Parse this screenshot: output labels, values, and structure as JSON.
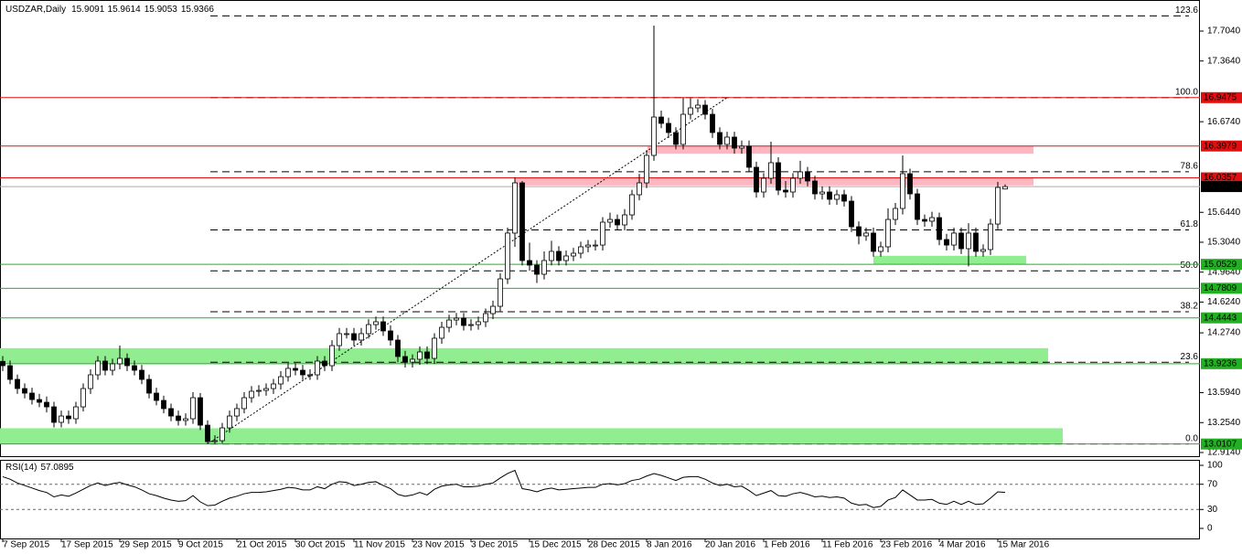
{
  "chart_data": {
    "type": "candlestick",
    "title": "USDZAR,Daily",
    "categories": [
      "7 Sep 2015",
      null,
      null,
      null,
      null,
      null,
      null,
      null,
      "17 Sep 2015",
      null,
      null,
      null,
      null,
      null,
      null,
      null,
      "29 Sep 2015",
      null,
      null,
      null,
      null,
      null,
      null,
      null,
      "9 Oct 2015",
      null,
      null,
      null,
      null,
      null,
      null,
      null,
      "21 Oct 2015",
      null,
      null,
      null,
      null,
      null,
      null,
      null,
      "30 Oct 2015",
      null,
      null,
      null,
      null,
      null,
      null,
      null,
      "11 Nov 2015",
      null,
      null,
      null,
      null,
      null,
      null,
      null,
      "23 Nov 2015",
      null,
      null,
      null,
      null,
      null,
      null,
      null,
      "3 Dec 2015",
      null,
      null,
      null,
      null,
      null,
      null,
      null,
      "15 Dec 2015",
      null,
      null,
      null,
      null,
      null,
      null,
      null,
      "28 Dec 2015",
      null,
      null,
      null,
      null,
      null,
      null,
      null,
      "8 Jan 2016",
      null,
      null,
      null,
      null,
      null,
      null,
      null,
      "20 Jan 2016",
      null,
      null,
      null,
      null,
      null,
      null,
      null,
      "1 Feb 2016",
      null,
      null,
      null,
      null,
      null,
      null,
      null,
      "11 Feb 2016",
      null,
      null,
      null,
      null,
      null,
      null,
      null,
      "23 Feb 2016",
      null,
      null,
      null,
      null,
      null,
      null,
      null,
      "4 Mar 2016",
      null,
      null,
      null,
      null,
      null,
      null,
      null,
      "15 Mar 2016",
      null
    ],
    "open": [
      13.95,
      13.901,
      13.745,
      13.641,
      13.589,
      13.516,
      13.485,
      13.433,
      13.257,
      13.329,
      13.298,
      13.433,
      13.641,
      13.797,
      13.953,
      13.849,
      13.922,
      13.984,
      13.901,
      13.849,
      13.745,
      13.589,
      13.506,
      13.413,
      13.329,
      13.278,
      13.298,
      13.537,
      13.225,
      13.038,
      13.049,
      13.194,
      13.329,
      13.413,
      13.537,
      13.61,
      13.62,
      13.641,
      13.693,
      13.776,
      13.87,
      13.849,
      13.797,
      13.797,
      13.953,
      13.901,
      14.129,
      14.265,
      14.265,
      14.192,
      14.265,
      14.368,
      14.4,
      14.296,
      14.192,
      14.005,
      13.942,
      13.974,
      14.057,
      13.984,
      14.213,
      14.337,
      14.42,
      14.441,
      14.358,
      14.368,
      14.4,
      14.493,
      14.576,
      14.888,
      15.408,
      15.979,
      15.096,
      15.044,
      14.94,
      15.096,
      15.2,
      15.096,
      15.148,
      15.179,
      15.252,
      15.272,
      15.272,
      15.532,
      15.563,
      15.501,
      15.615,
      15.844,
      15.979,
      16.291,
      16.727,
      16.655,
      16.551,
      16.416,
      16.758,
      16.831,
      16.862,
      16.758,
      16.551,
      16.416,
      16.499,
      16.374,
      16.395,
      16.156,
      15.875,
      16.031,
      16.208,
      15.896,
      15.875,
      16.031,
      16.104,
      16.0,
      15.854,
      15.875,
      15.792,
      15.844,
      15.771,
      15.48,
      15.376,
      15.408,
      15.2,
      15.252,
      15.563,
      15.688,
      16.083,
      15.854,
      15.563,
      15.543,
      15.584,
      15.335,
      15.272,
      15.408,
      15.231,
      15.408,
      15.2,
      15.221,
      15.511,
      15.9091
    ],
    "high": [
      14.01,
      13.96,
      13.8,
      13.7,
      13.65,
      13.58,
      13.55,
      13.49,
      13.39,
      13.39,
      13.49,
      13.7,
      13.86,
      14.01,
      14.01,
      13.98,
      14.13,
      14.04,
      13.96,
      13.91,
      13.8,
      13.65,
      13.56,
      13.47,
      13.39,
      13.36,
      13.6,
      13.59,
      13.28,
      13.11,
      13.25,
      13.39,
      13.47,
      13.6,
      13.67,
      13.68,
      13.7,
      13.75,
      13.84,
      13.93,
      13.93,
      13.91,
      13.86,
      14.01,
      14.01,
      14.19,
      14.33,
      14.33,
      14.33,
      14.33,
      14.43,
      14.46,
      14.46,
      14.36,
      14.25,
      14.07,
      14.03,
      14.12,
      14.12,
      14.27,
      14.4,
      14.48,
      14.5,
      14.5,
      14.43,
      14.46,
      14.55,
      14.64,
      14.95,
      15.47,
      16.04,
      16.0,
      15.3,
      15.1,
      15.2,
      15.32,
      15.26,
      15.21,
      15.24,
      15.31,
      15.33,
      15.33,
      15.59,
      15.64,
      15.62,
      15.68,
      15.9,
      16.08,
      16.35,
      17.766,
      16.8,
      16.72,
      16.61,
      16.9475,
      16.94,
      16.93,
      16.92,
      16.82,
      16.61,
      16.56,
      16.56,
      16.46,
      16.46,
      16.22,
      16.09,
      16.447,
      16.27,
      16.0,
      16.09,
      16.23,
      16.16,
      16.06,
      15.94,
      15.94,
      15.9,
      15.9,
      15.83,
      15.54,
      15.47,
      15.47,
      15.31,
      15.69,
      15.75,
      16.29,
      16.14,
      15.91,
      15.62,
      15.65,
      15.64,
      15.4,
      15.47,
      15.47,
      15.52,
      15.47,
      15.28,
      15.57,
      15.99,
      15.9614
    ],
    "low": [
      13.84,
      13.69,
      13.58,
      13.53,
      13.46,
      13.43,
      13.37,
      13.2,
      13.2,
      13.24,
      13.24,
      13.38,
      13.58,
      13.74,
      13.79,
      13.79,
      13.86,
      13.84,
      13.79,
      13.69,
      13.53,
      13.45,
      13.36,
      13.27,
      13.22,
      13.22,
      13.24,
      13.17,
      13.0107,
      13.01,
      13.02,
      13.14,
      13.27,
      13.36,
      13.48,
      13.55,
      13.56,
      13.58,
      13.63,
      13.72,
      13.79,
      13.74,
      13.74,
      13.74,
      13.84,
      13.84,
      14.07,
      14.21,
      14.13,
      14.13,
      14.21,
      14.31,
      14.24,
      14.13,
      13.94,
      13.88,
      13.88,
      13.91,
      13.92,
      13.92,
      14.15,
      14.28,
      14.36,
      14.3,
      14.3,
      14.31,
      14.34,
      14.43,
      14.52,
      14.83,
      15.25,
      15.04,
      14.98,
      14.84,
      14.88,
      15.04,
      15.04,
      15.04,
      15.09,
      15.12,
      15.19,
      15.21,
      15.21,
      15.47,
      15.44,
      15.44,
      15.56,
      15.78,
      15.92,
      16.23,
      16.6,
      16.49,
      16.36,
      16.36,
      16.7,
      16.78,
      16.7,
      16.49,
      16.36,
      16.36,
      16.31,
      16.31,
      16.1,
      15.81,
      15.81,
      15.97,
      15.84,
      15.81,
      15.81,
      15.97,
      15.94,
      15.79,
      15.79,
      15.73,
      15.73,
      15.71,
      15.42,
      15.28,
      15.32,
      15.14,
      15.14,
      15.19,
      15.5,
      15.62,
      15.79,
      15.5,
      15.48,
      15.48,
      15.27,
      15.21,
      15.21,
      15.17,
      15.03,
      15.14,
      15.14,
      15.16,
      15.45,
      15.9053
    ],
    "close": [
      13.901,
      13.745,
      13.641,
      13.589,
      13.516,
      13.485,
      13.433,
      13.257,
      13.329,
      13.298,
      13.433,
      13.641,
      13.797,
      13.953,
      13.849,
      13.922,
      13.984,
      13.901,
      13.849,
      13.745,
      13.589,
      13.506,
      13.413,
      13.329,
      13.278,
      13.298,
      13.537,
      13.225,
      13.038,
      13.049,
      13.194,
      13.329,
      13.413,
      13.537,
      13.61,
      13.62,
      13.641,
      13.693,
      13.776,
      13.87,
      13.849,
      13.797,
      13.797,
      13.953,
      13.901,
      14.129,
      14.265,
      14.265,
      14.192,
      14.265,
      14.368,
      14.4,
      14.296,
      14.192,
      14.005,
      13.942,
      13.974,
      14.057,
      13.984,
      14.213,
      14.337,
      14.42,
      14.441,
      14.358,
      14.368,
      14.4,
      14.493,
      14.576,
      14.888,
      15.408,
      15.979,
      15.096,
      15.044,
      14.94,
      15.096,
      15.2,
      15.096,
      15.148,
      15.179,
      15.252,
      15.272,
      15.272,
      15.532,
      15.563,
      15.501,
      15.615,
      15.844,
      15.979,
      16.291,
      16.727,
      16.655,
      16.551,
      16.416,
      16.758,
      16.831,
      16.862,
      16.758,
      16.551,
      16.416,
      16.499,
      16.374,
      16.395,
      16.156,
      15.875,
      16.031,
      16.208,
      15.896,
      15.875,
      16.031,
      16.104,
      16.0,
      15.854,
      15.875,
      15.792,
      15.844,
      15.771,
      15.48,
      15.376,
      15.408,
      15.2,
      15.252,
      15.563,
      15.688,
      16.083,
      15.854,
      15.563,
      15.543,
      15.584,
      15.335,
      15.272,
      15.408,
      15.231,
      15.408,
      15.2,
      15.221,
      15.511,
      15.927,
      15.9366
    ],
    "bull_color": "#ffffff",
    "bear_color": "#000000",
    "ylim": [
      12.8619,
      18.0573
    ],
    "yticks": [
      {
        "value": 17.704,
        "label": "17.7040"
      },
      {
        "value": 17.364,
        "label": "17.3640"
      },
      {
        "value": 16.674,
        "label": "16.6740"
      },
      {
        "value": 15.644,
        "label": "15.6440"
      },
      {
        "value": 15.304,
        "label": "15.3040"
      },
      {
        "value": 14.964,
        "label": "14.9640"
      },
      {
        "value": 14.624,
        "label": "14.6240"
      },
      {
        "value": 14.274,
        "label": "14.2740"
      },
      {
        "value": 13.594,
        "label": "13.5940"
      },
      {
        "value": 13.254,
        "label": "13.2540"
      },
      {
        "value": 12.914,
        "label": "12.9140"
      }
    ],
    "grid": false,
    "price_lines": [
      {
        "value": 16.9475,
        "color": "#e01010",
        "text_color": "#ffffff"
      },
      {
        "value": 16.3979,
        "color": "#e01010",
        "text_color": "#ffffff"
      },
      {
        "value": 16.0357,
        "color": "#e01010",
        "text_color": "#ffffff"
      },
      {
        "value": 15.0529,
        "color": "#22b022",
        "text_color": "#000000"
      },
      {
        "value": 14.7809,
        "color": "#22b022",
        "text_color": "#000000"
      },
      {
        "value": 14.4443,
        "color": "#22b022",
        "text_color": "#000000"
      },
      {
        "value": 13.9236,
        "color": "#22b022",
        "text_color": "#000000"
      },
      {
        "value": 13.0107,
        "color": "#22b022",
        "text_color": "#000000"
      }
    ],
    "zones": [
      {
        "from": 16.3979,
        "to": 16.31,
        "color": "#ffb6c1"
      },
      {
        "from": 16.0357,
        "to": 15.95,
        "color": "#ffb6c1"
      },
      {
        "from": 15.0529,
        "to": 15.15,
        "color": "#90ee90"
      },
      {
        "from": 13.9236,
        "to": 14.1,
        "color": "#90ee90"
      },
      {
        "from": 13.0107,
        "to": 13.19,
        "color": "#90ee90"
      }
    ],
    "fib": {
      "low": 13.0107,
      "high": 16.9475,
      "levels": [
        {
          "value": 0,
          "label": "0.0"
        },
        23.6,
        38.2,
        {
          "value": 50,
          "label": "50.0"
        },
        61.8,
        78.6,
        {
          "value": 100,
          "label": "100.0"
        },
        123.6
      ]
    },
    "rsi": {
      "title": "RSI(14)",
      "color": "#000000",
      "values": [
        82,
        78,
        72,
        68,
        64,
        60,
        57,
        50,
        53,
        51,
        56,
        62,
        68,
        72,
        68,
        71,
        73,
        69,
        66,
        61,
        55,
        52,
        48,
        45,
        43,
        44,
        52,
        42,
        36,
        37,
        43,
        48,
        51,
        55,
        57,
        57,
        58,
        60,
        62,
        65,
        64,
        61,
        61,
        66,
        63,
        70,
        74,
        73,
        68,
        70,
        73,
        74,
        68,
        63,
        54,
        51,
        53,
        57,
        53,
        62,
        67,
        69,
        70,
        66,
        66,
        67,
        70,
        72,
        80,
        87,
        92,
        63,
        61,
        58,
        62,
        64,
        61,
        62,
        63,
        64,
        65,
        65,
        70,
        71,
        69,
        71,
        76,
        78,
        83,
        87,
        84,
        80,
        76,
        81,
        82,
        82,
        78,
        72,
        68,
        70,
        66,
        67,
        60,
        52,
        56,
        60,
        52,
        51,
        55,
        57,
        54,
        50,
        51,
        49,
        50,
        48,
        40,
        37,
        38,
        33,
        35,
        45,
        49,
        61,
        53,
        45,
        45,
        46,
        40,
        38,
        43,
        38,
        43,
        38,
        39,
        48,
        58,
        57.0895
      ],
      "ylim": [
        -17.4,
        108.7
      ],
      "yticks": [
        100,
        70,
        30,
        0
      ],
      "levels": [
        70,
        30
      ]
    }
  }
}
